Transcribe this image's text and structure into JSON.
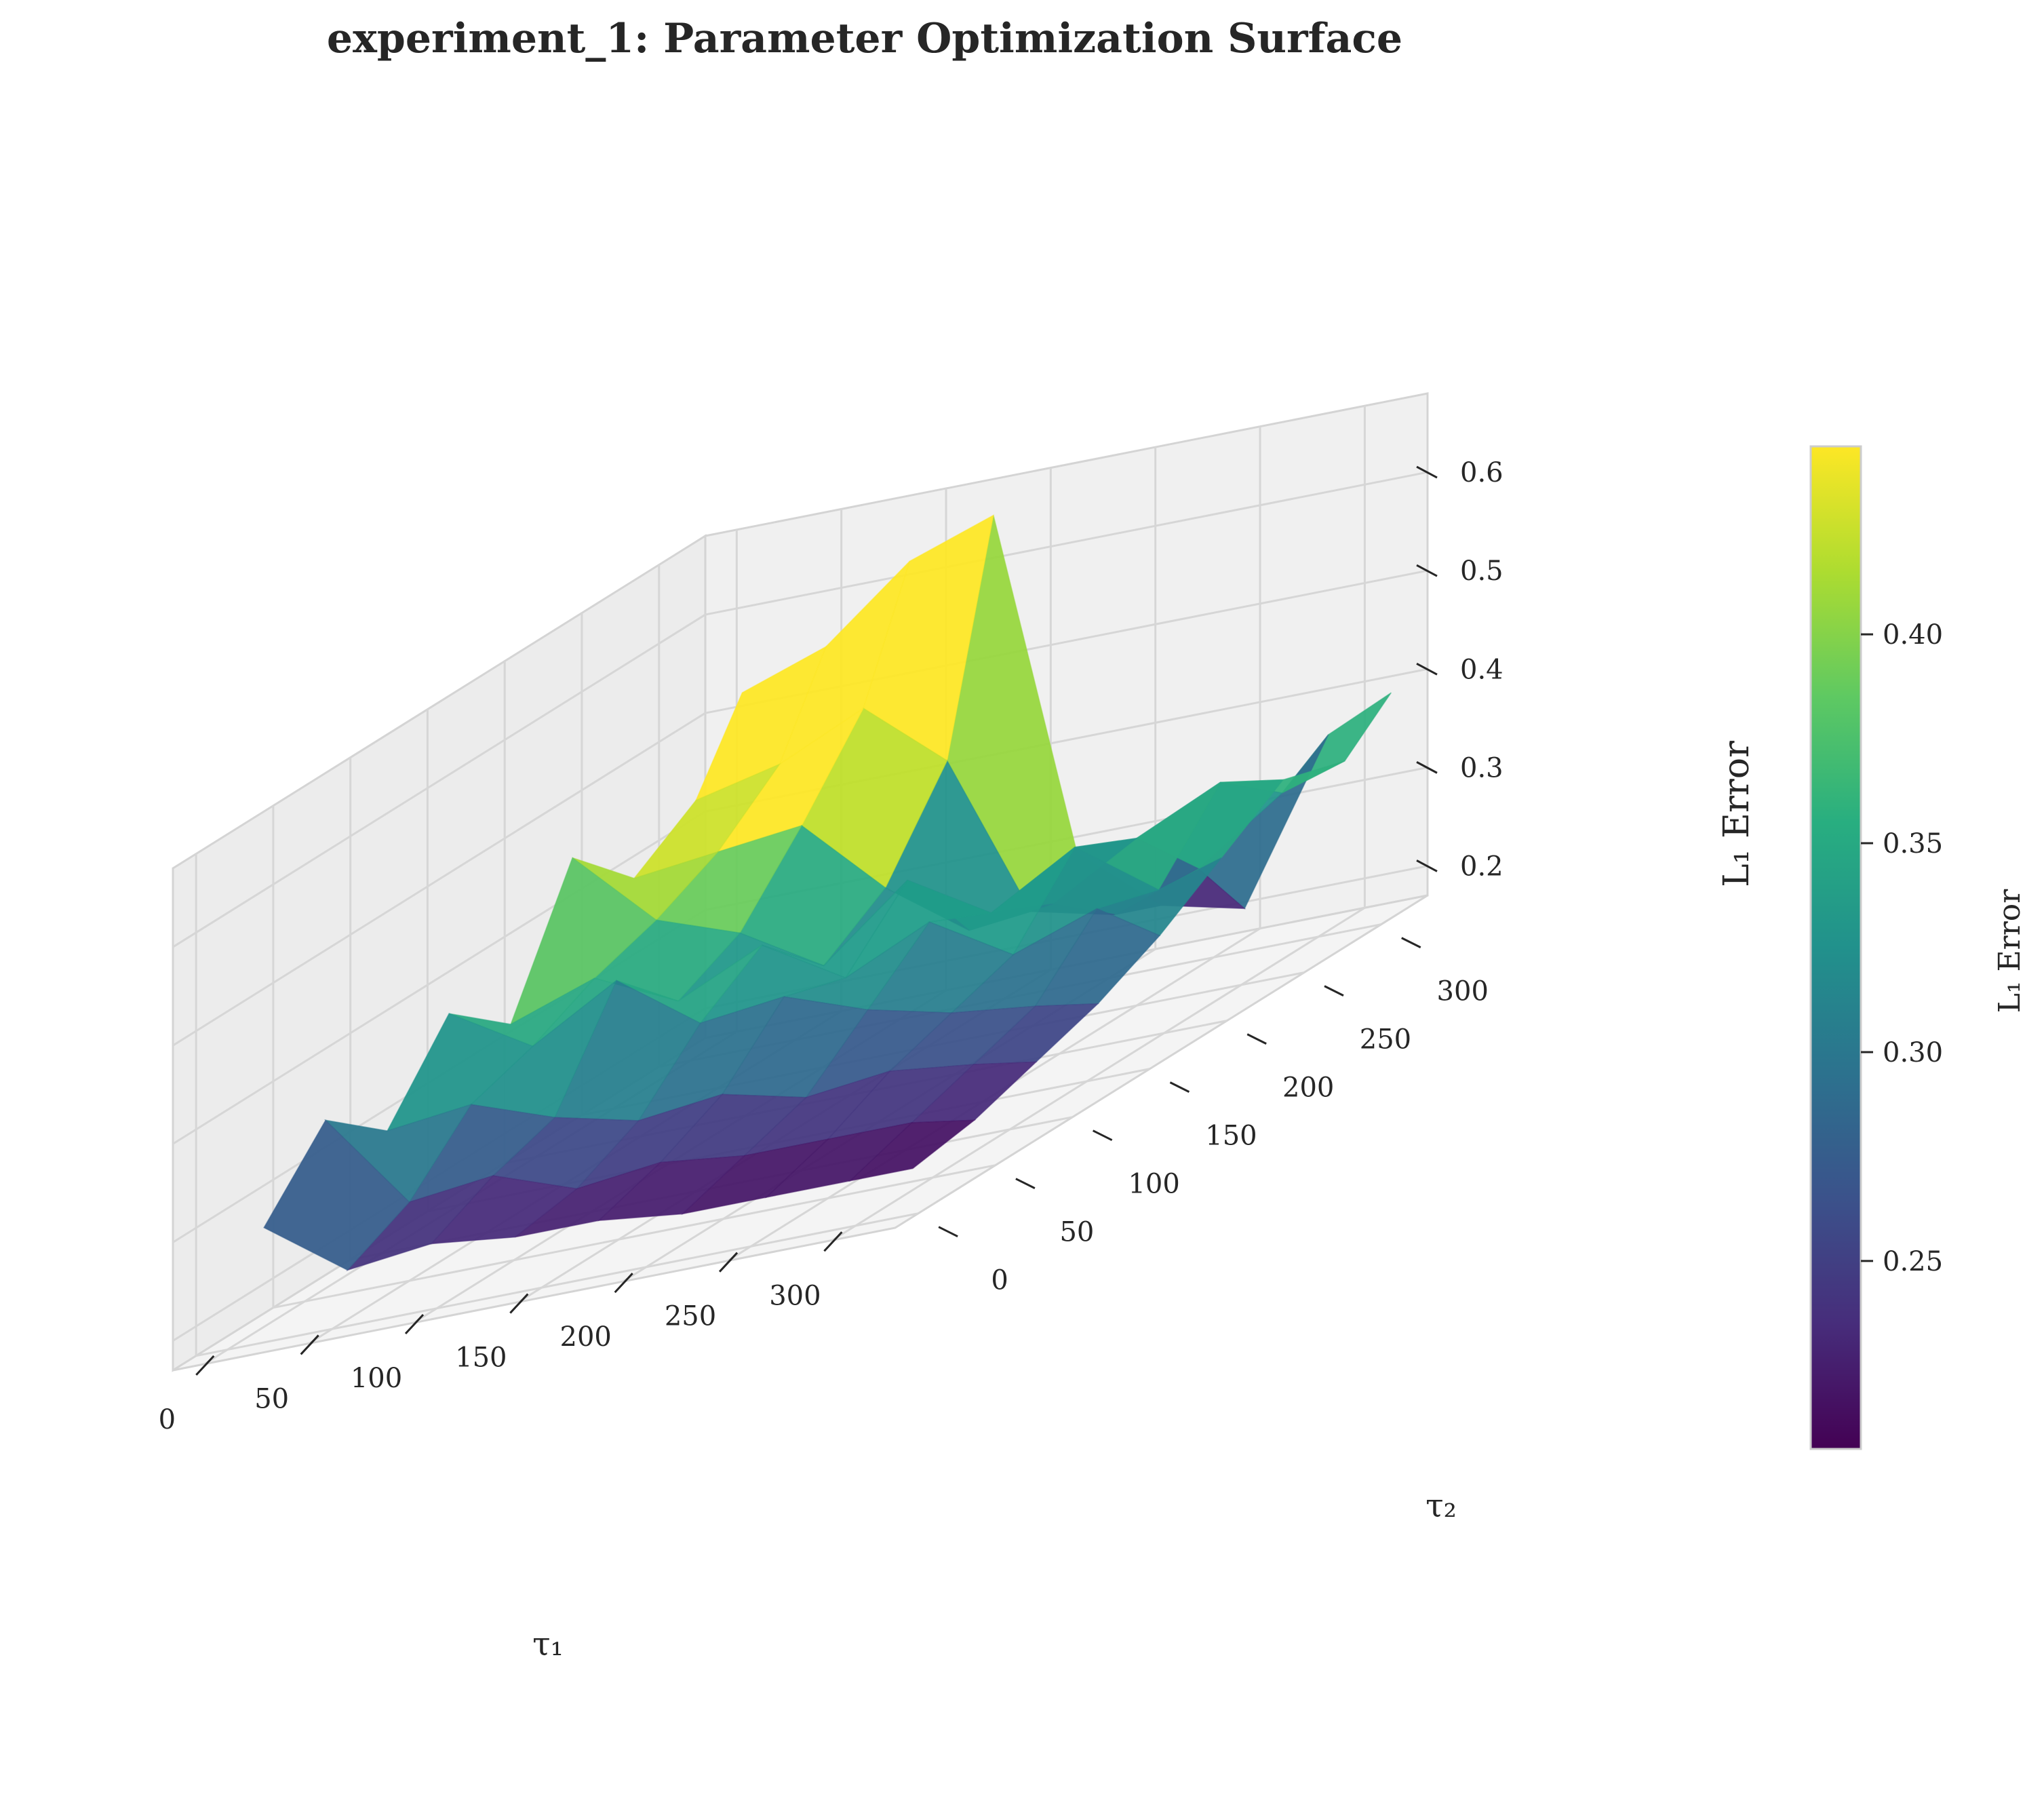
{
  "chart_data": {
    "type": "surface3d",
    "title": "experiment_1: Parameter Optimization Surface",
    "xlabel": "τ₁",
    "ylabel": "τ₂",
    "zlabel": "L₁ Error",
    "colorbar_label": "L₁ Error",
    "colormap": "viridis",
    "x_ticks": [
      0,
      50,
      100,
      150,
      200,
      250,
      300
    ],
    "y_ticks": [
      0,
      50,
      100,
      150,
      200,
      250,
      300
    ],
    "z_ticks": [
      0.2,
      0.3,
      0.4,
      0.5,
      0.6
    ],
    "colorbar_ticks": [
      0.25,
      0.3,
      0.35,
      0.4
    ],
    "colorbar_range": [
      0.205,
      0.445
    ],
    "xlim": [
      -15,
      330
    ],
    "ylim": [
      -15,
      330
    ],
    "zlim": [
      0.17,
      0.68
    ],
    "grid": true,
    "x": [
      10,
      50,
      90,
      130,
      170,
      210,
      250,
      290,
      320
    ],
    "y": [
      10,
      50,
      90,
      130,
      170,
      210,
      250,
      290,
      320
    ],
    "z": [
      [
        0.28,
        0.35,
        0.3,
        0.38,
        0.33,
        0.46,
        0.4,
        0.44,
        0.52
      ],
      [
        0.22,
        0.25,
        0.31,
        0.33,
        0.36,
        0.38,
        0.41,
        0.46,
        0.55
      ],
      [
        0.23,
        0.26,
        0.28,
        0.38,
        0.32,
        0.35,
        0.42,
        0.5,
        0.62
      ],
      [
        0.22,
        0.23,
        0.26,
        0.32,
        0.36,
        0.3,
        0.34,
        0.43,
        0.65
      ],
      [
        0.22,
        0.24,
        0.27,
        0.33,
        0.31,
        0.37,
        0.28,
        0.26,
        0.29
      ],
      [
        0.21,
        0.23,
        0.25,
        0.3,
        0.35,
        0.32,
        0.29,
        0.24,
        0.22
      ],
      [
        0.21,
        0.23,
        0.26,
        0.28,
        0.3,
        0.37,
        0.34,
        0.27,
        0.2
      ],
      [
        0.21,
        0.23,
        0.25,
        0.27,
        0.33,
        0.31,
        0.38,
        0.33,
        0.36
      ],
      [
        0.21,
        0.22,
        0.24,
        0.26,
        0.29,
        0.33,
        0.37,
        0.35,
        0.39
      ]
    ]
  }
}
